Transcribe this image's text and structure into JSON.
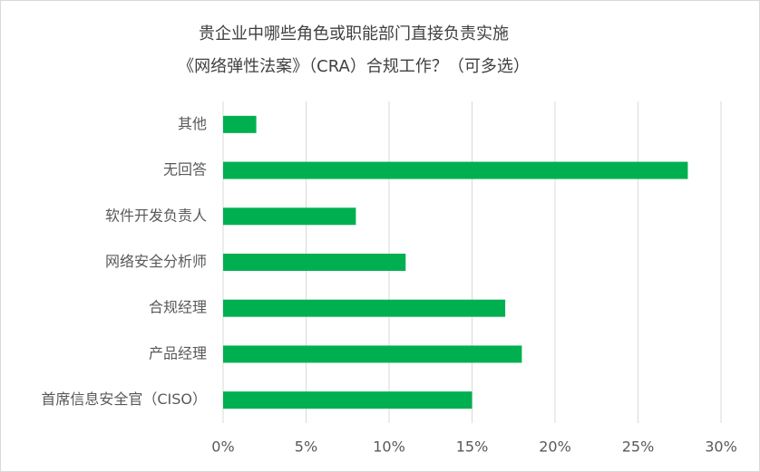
{
  "chart_data": {
    "type": "bar",
    "orientation": "horizontal",
    "title": [
      "贵企业中哪些角色或职能部门直接负责实施",
      "《网络弹性法案》（CRA）合规工作？（可多选）"
    ],
    "categories": [
      "其他",
      "无回答",
      "软件开发负责人",
      "网络安全分析师",
      "合规经理",
      "产品经理",
      "首席信息安全官（CISO）"
    ],
    "values": [
      2,
      28,
      8,
      11,
      17,
      18,
      15
    ],
    "color": "#00b050",
    "xlim": [
      0,
      30
    ],
    "xticks": [
      {
        "value": 0,
        "label": "0%"
      },
      {
        "value": 5,
        "label": "5%"
      },
      {
        "value": 10,
        "label": "10%"
      },
      {
        "value": 15,
        "label": "15%"
      },
      {
        "value": 20,
        "label": "20%"
      },
      {
        "value": 25,
        "label": "25%"
      },
      {
        "value": 30,
        "label": "30%"
      }
    ],
    "grid": true
  }
}
